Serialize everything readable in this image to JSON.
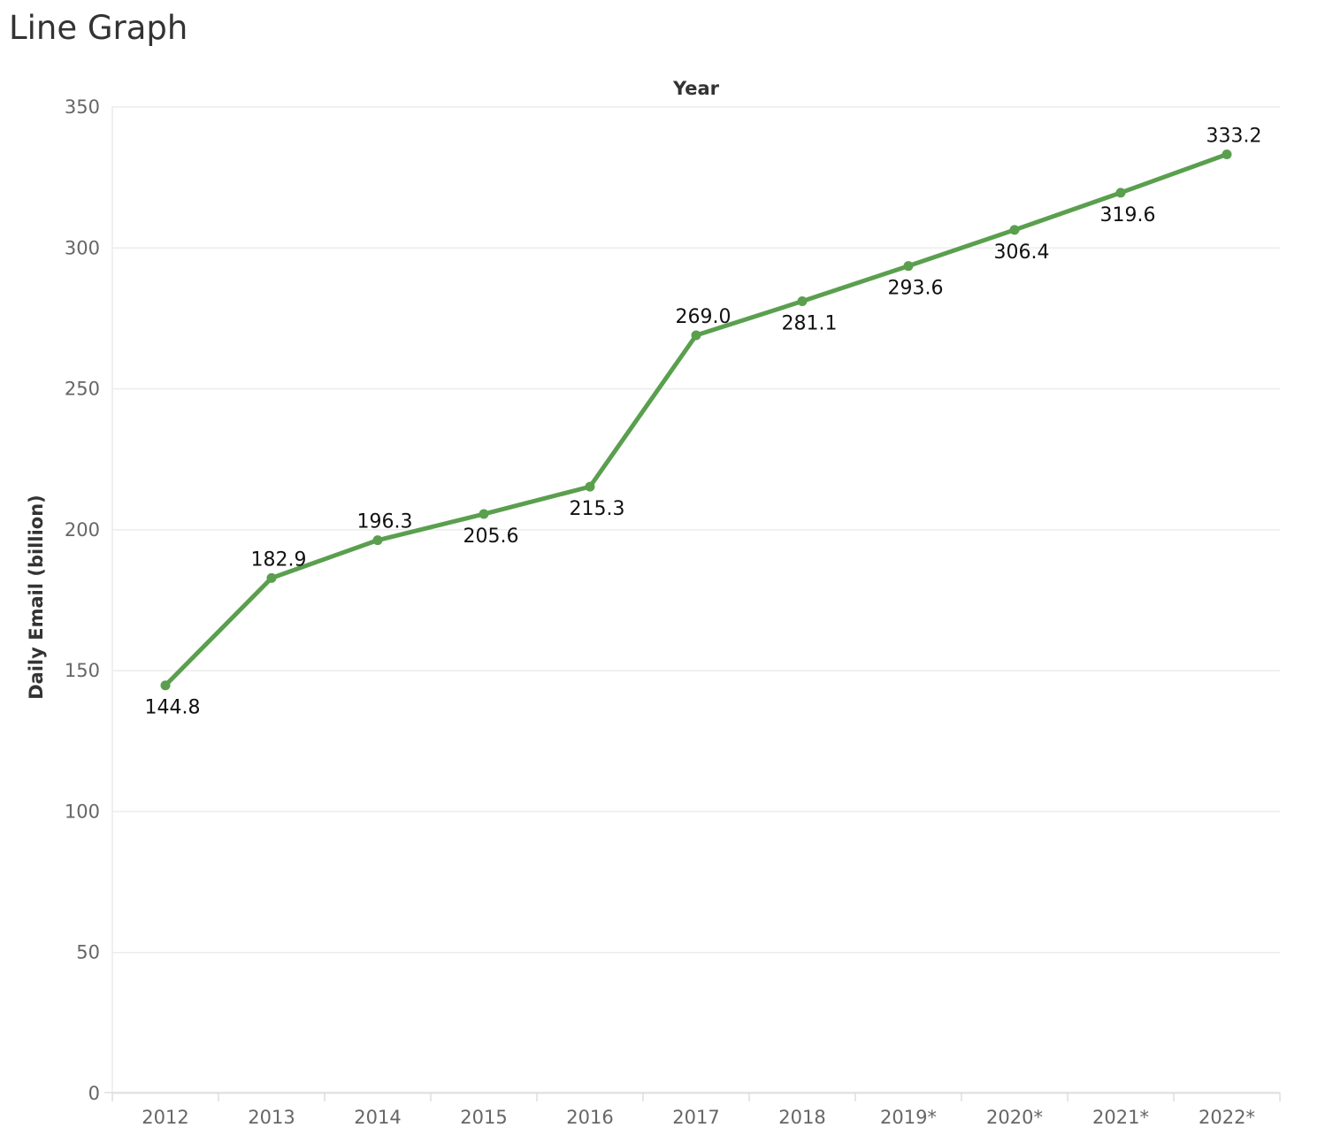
{
  "title": "Line Graph",
  "chart_data": {
    "type": "line",
    "title": "Line Graph",
    "xlabel": "Year",
    "ylabel": "Daily Email (billion)",
    "categories": [
      "2012",
      "2013",
      "2014",
      "2015",
      "2016",
      "2017",
      "2018",
      "2019*",
      "2020*",
      "2021*",
      "2022*"
    ],
    "series": [
      {
        "values": [
          144.8,
          182.9,
          196.3,
          205.6,
          215.3,
          269.0,
          281.1,
          293.6,
          306.4,
          319.6,
          333.2
        ],
        "labels": [
          "144.8",
          "182.9",
          "196.3",
          "205.6",
          "215.3",
          "269.0",
          "281.1",
          "293.6",
          "306.4",
          "319.6",
          "333.2"
        ],
        "label_position": [
          "below",
          "above",
          "above",
          "below",
          "below",
          "above",
          "below",
          "below",
          "below",
          "below",
          "above"
        ],
        "color": "#5a9f4e"
      }
    ],
    "ylim": [
      0,
      350
    ],
    "yticks": [
      "0",
      "50",
      "100",
      "150",
      "200",
      "250",
      "300",
      "350"
    ],
    "grid": true,
    "legend": "none"
  }
}
